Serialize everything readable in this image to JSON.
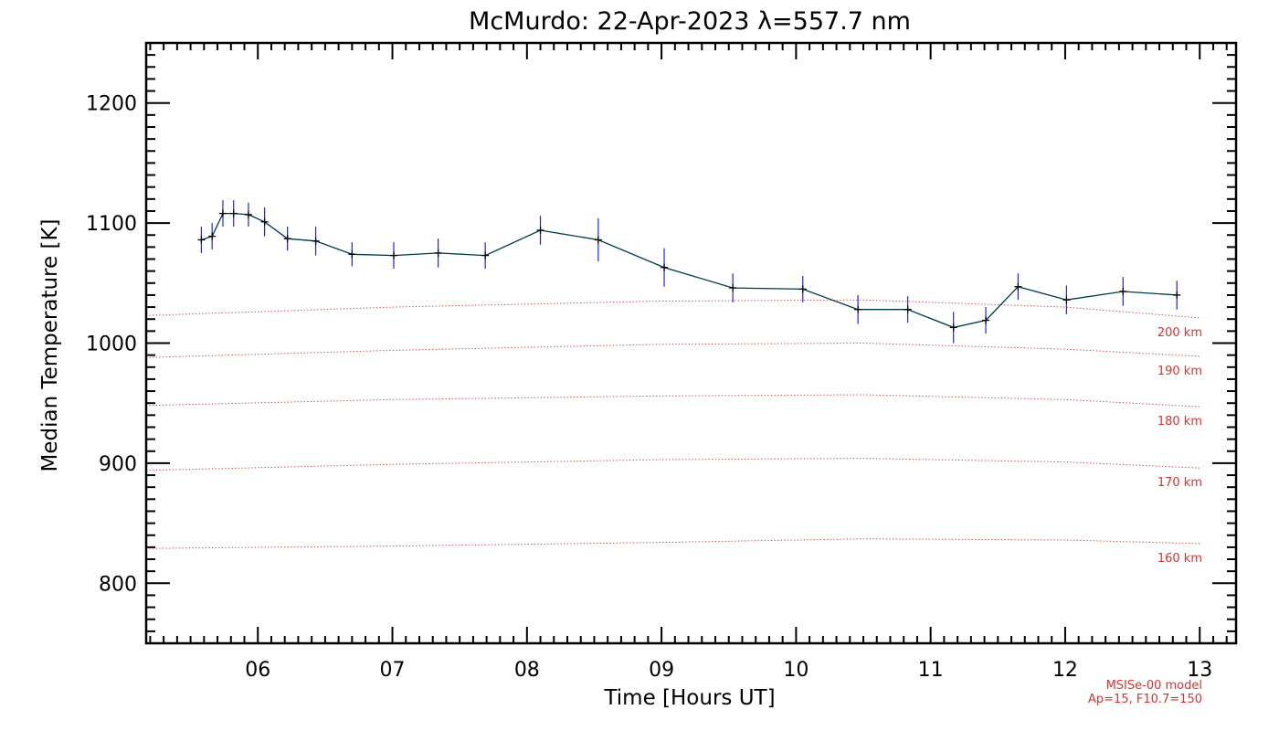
{
  "chart_data": {
    "type": "line",
    "title": "McMurdo: 22-Apr-2023 λ=557.7 nm",
    "xlabel": "Time [Hours UT]",
    "ylabel": "Median Temperature [K]",
    "xlim": [
      5.17,
      13.27
    ],
    "ylim": [
      750,
      1250
    ],
    "x_ticks": [
      6,
      7,
      8,
      9,
      10,
      11,
      12,
      13
    ],
    "x_tick_labels": [
      "06",
      "07",
      "08",
      "09",
      "10",
      "11",
      "12",
      "13"
    ],
    "y_ticks": [
      800,
      900,
      1000,
      1100,
      1200
    ],
    "y_tick_labels": [
      "800",
      "900",
      "1000",
      "1100",
      "1200"
    ],
    "grid": false,
    "series": [
      {
        "line_color": "#003a4a",
        "error_color": "#2020ff",
        "x": [
          5.58,
          5.66,
          5.74,
          5.82,
          5.93,
          6.05,
          6.22,
          6.43,
          6.7,
          7.01,
          7.34,
          7.69,
          8.1,
          8.53,
          9.02,
          9.53,
          10.05,
          10.46,
          10.83,
          11.17,
          11.41,
          11.65,
          12.01,
          12.43,
          12.83
        ],
        "y": [
          1086,
          1089,
          1108,
          1108,
          1107,
          1101,
          1087,
          1085,
          1074,
          1073,
          1075,
          1073,
          1094,
          1086,
          1063,
          1046,
          1045,
          1028,
          1028,
          1013,
          1019,
          1047,
          1036,
          1043,
          1040
        ],
        "error": [
          11,
          11,
          11,
          11,
          10,
          12,
          10,
          12,
          10,
          11,
          12,
          11,
          12,
          18,
          16,
          12,
          11,
          12,
          11,
          13,
          11,
          11,
          12,
          12,
          12
        ]
      }
    ],
    "model_curves": [
      {
        "label": "160 km",
        "x": [
          5.17,
          7,
          9,
          10.5,
          12,
          13.0
        ],
        "y": [
          829,
          831,
          834,
          837,
          836,
          833
        ]
      },
      {
        "label": "170 km",
        "x": [
          5.17,
          7,
          9,
          10.5,
          12,
          13.0
        ],
        "y": [
          894,
          899,
          903,
          904,
          901,
          896
        ]
      },
      {
        "label": "180 km",
        "x": [
          5.17,
          7,
          9,
          10.5,
          12,
          13.0
        ],
        "y": [
          948,
          953,
          956,
          957,
          953,
          947
        ]
      },
      {
        "label": "190 km",
        "x": [
          5.17,
          7,
          9,
          10.5,
          12,
          13.0
        ],
        "y": [
          988,
          994,
          999,
          1000,
          995,
          989
        ]
      },
      {
        "label": "200 km",
        "x": [
          5.17,
          7,
          9,
          10.5,
          12,
          13.0
        ],
        "y": [
          1023,
          1030,
          1035,
          1036,
          1030,
          1021
        ]
      }
    ],
    "model_note_lines": [
      "MSISe-00 model",
      "Ap=15, F10.7=150"
    ]
  }
}
